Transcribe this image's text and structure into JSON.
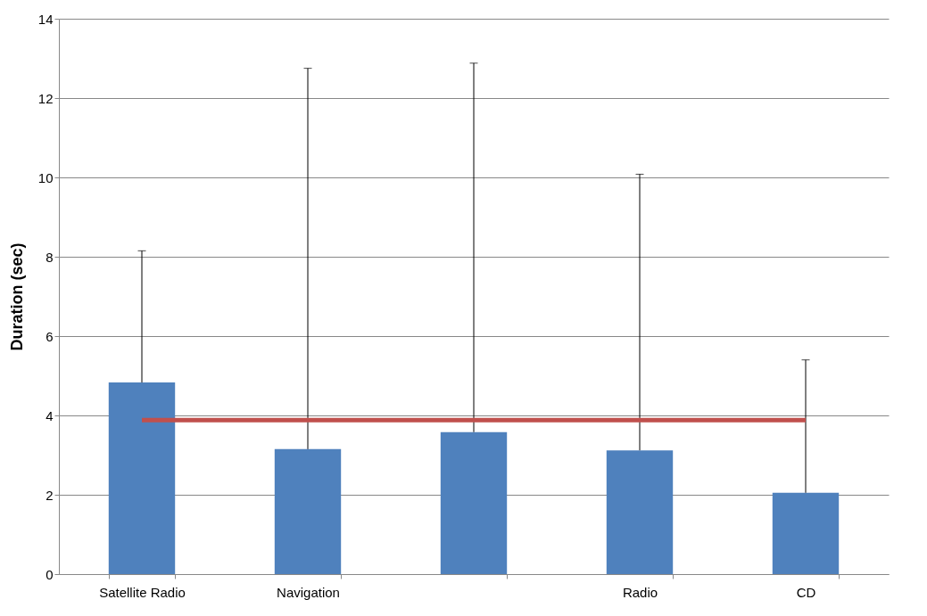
{
  "chart_data": {
    "type": "bar",
    "ylabel": "Duration (sec)",
    "categories": [
      "Satellite Radio",
      "Navigation",
      null,
      "Radio",
      "CD"
    ],
    "series": [
      {
        "color": "#4f81bd",
        "values": [
          4.83,
          3.15,
          3.58,
          3.12,
          2.05
        ],
        "errors": [
          [
            4.83,
            8.15
          ],
          [
            3.15,
            12.75
          ],
          [
            3.58,
            12.88
          ],
          [
            3.12,
            10.08
          ],
          [
            2.05,
            5.4
          ]
        ]
      },
      {
        "type": "line",
        "color": "#c0504d",
        "values": [
          3.88,
          3.88,
          3.88,
          3.88,
          3.88
        ]
      }
    ],
    "ylim": [
      0,
      14
    ],
    "yticks": [
      0,
      2,
      4,
      6,
      8,
      10,
      12,
      14
    ],
    "grid": "y"
  }
}
